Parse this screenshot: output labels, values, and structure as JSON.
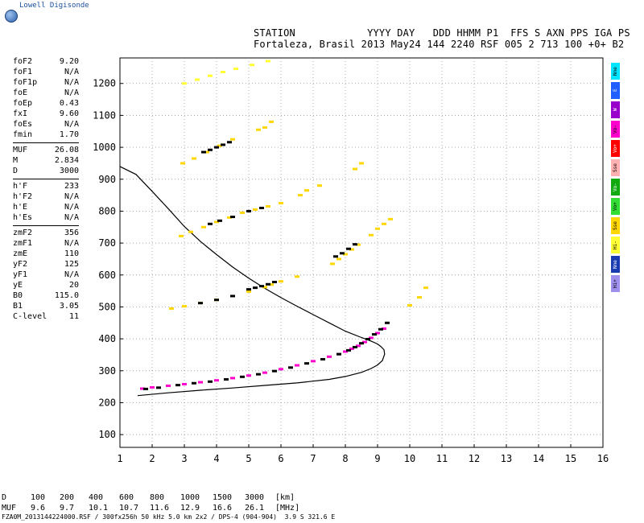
{
  "app": {
    "logo_text": "Lowell Digisonde"
  },
  "header": {
    "line1": "STATION            YYYY DAY   DDD HHMM P1  FFS S AXN PPS IGA PS",
    "line2": "Fortaleza, Brasil 2013 May24 144 2240 RSF 005 2 713 100 +0+ B2"
  },
  "params": {
    "group1": [
      {
        "key": "foF2",
        "val": "9.20"
      },
      {
        "key": "foF1",
        "val": "N/A"
      },
      {
        "key": "foF1p",
        "val": "N/A"
      },
      {
        "key": "foE",
        "val": "N/A"
      },
      {
        "key": "foEp",
        "val": "0.43"
      },
      {
        "key": "fxI",
        "val": "9.60"
      },
      {
        "key": "foEs",
        "val": "N/A"
      },
      {
        "key": "fmin",
        "val": "1.70"
      }
    ],
    "group2": [
      {
        "key": "MUF",
        "val": "26.08"
      },
      {
        "key": "M",
        "val": "2.834"
      },
      {
        "key": "D",
        "val": "3000"
      }
    ],
    "group3": [
      {
        "key": "h'F",
        "val": "233"
      },
      {
        "key": "h'F2",
        "val": "N/A"
      },
      {
        "key": "h'E",
        "val": "N/A"
      },
      {
        "key": "h'Es",
        "val": "N/A"
      }
    ],
    "group4": [
      {
        "key": "zmF2",
        "val": "356"
      },
      {
        "key": "zmF1",
        "val": "N/A"
      },
      {
        "key": "zmE",
        "val": "110"
      },
      {
        "key": "yF2",
        "val": "125"
      },
      {
        "key": "yF1",
        "val": "N/A"
      },
      {
        "key": "yE",
        "val": "20"
      },
      {
        "key": "B0",
        "val": "115.0"
      },
      {
        "key": "B1",
        "val": "3.05"
      },
      {
        "key": "C-level",
        "val": "11"
      }
    ]
  },
  "legend": [
    {
      "label": "Nne",
      "color": "#00e5ff"
    },
    {
      "label": "E",
      "color": "#1f5fff"
    },
    {
      "label": "W",
      "color": "#9900cc"
    },
    {
      "label": "Vo-",
      "color": "#ff00cc"
    },
    {
      "label": "Vo+",
      "color": "#ff0000"
    },
    {
      "label": "Sse",
      "color": "#ffb0b0"
    },
    {
      "label": "Vo-",
      "color": "#11aa11"
    },
    {
      "label": "Vo+",
      "color": "#33dd33"
    },
    {
      "label": "Sse",
      "color": "#ffd700"
    },
    {
      "label": "Hi-",
      "color": "#ffff33"
    },
    {
      "label": "Nne",
      "color": "#1a3cb0"
    },
    {
      "label": "Hi+",
      "color": "#a090ee"
    }
  ],
  "d_table": {
    "d_label": "D",
    "muf_label": "MUF",
    "d_values": [
      "100",
      "200",
      "400",
      "600",
      "800",
      "1000",
      "1500",
      "3000",
      "[km]"
    ],
    "muf_values": [
      "9.6",
      "9.7",
      "10.1",
      "10.7",
      "11.6",
      "12.9",
      "16.6",
      "26.1",
      "[MHz]"
    ]
  },
  "footer": "FZA0M_2013144224000.RSF / 300fx256h 50 kHz 5.0 km 2x2 / DPS-4 (904-904)  3.9 S 321.6 E",
  "chart_data": {
    "type": "scatter",
    "title": "",
    "xlabel": "",
    "ylabel": "",
    "xlim": [
      1,
      16
    ],
    "ylim": [
      60,
      1280
    ],
    "x_ticks": [
      1,
      2,
      3,
      4,
      5,
      6,
      7,
      8,
      9,
      10,
      11,
      12,
      13,
      14,
      15,
      16
    ],
    "y_ticks": [
      100,
      200,
      300,
      400,
      500,
      600,
      700,
      800,
      900,
      1000,
      1100,
      1200
    ],
    "grid": true,
    "series": [
      {
        "name": "",
        "color": "#000000",
        "style": "line",
        "x": [
          1.55,
          2.5,
          3.5,
          4.5,
          5.5,
          6.5,
          7.5,
          8.0,
          8.5,
          8.8,
          9.0,
          9.15,
          9.22,
          9.2,
          9.1,
          9.0,
          8.8,
          8.5,
          8.0,
          7.5,
          7.0,
          6.5,
          6.0,
          5.5,
          5.0,
          4.5,
          4.0,
          3.5,
          3.0,
          2.5,
          2.0,
          1.5,
          1.0
        ],
        "y": [
          222,
          231,
          239,
          246,
          254,
          262,
          273,
          282,
          295,
          307,
          318,
          332,
          352,
          366,
          376,
          384,
          393,
          404,
          424,
          450,
          476,
          502,
          529,
          558,
          590,
          625,
          664,
          705,
          752,
          808,
          862,
          915,
          940
        ]
      },
      {
        "name": "",
        "color": "#ff00cc",
        "style": "dots",
        "x": [
          1.7,
          2.0,
          2.5,
          3.0,
          3.5,
          4.0,
          4.5,
          5.0,
          5.5,
          6.0,
          6.5,
          7.0,
          7.5,
          7.8,
          8.0,
          8.2,
          8.4,
          8.6,
          8.8,
          9.0,
          9.2
        ],
        "y": [
          244,
          248,
          253,
          258,
          264,
          270,
          277,
          285,
          294,
          305,
          317,
          330,
          344,
          352,
          360,
          369,
          378,
          390,
          403,
          418,
          432
        ]
      },
      {
        "name": "",
        "color": "#000000",
        "style": "dots",
        "x": [
          1.8,
          2.2,
          2.8,
          3.3,
          3.8,
          4.3,
          4.8,
          5.3,
          5.8,
          6.3,
          6.8,
          7.3,
          7.8,
          8.1,
          8.3,
          8.5,
          8.7,
          8.9,
          9.1,
          9.3
        ],
        "y": [
          243,
          247,
          255,
          261,
          266,
          273,
          281,
          289,
          299,
          310,
          323,
          336,
          352,
          364,
          374,
          386,
          399,
          414,
          430,
          450
        ]
      },
      {
        "name": "",
        "color": "#ffd700",
        "style": "dots",
        "x": [
          2.6,
          3.0,
          3.5,
          4.0,
          4.5,
          5.0,
          5.5,
          5.7,
          6.0,
          6.5
        ],
        "y": [
          495,
          502,
          512,
          522,
          534,
          548,
          562,
          570,
          580,
          595
        ]
      },
      {
        "name": "",
        "color": "#000000",
        "style": "dots",
        "x": [
          3.5,
          4.0,
          4.5,
          5.0,
          5.2,
          5.4,
          5.6,
          5.8
        ],
        "y": [
          512,
          522,
          534,
          555,
          560,
          565,
          571,
          578
        ]
      },
      {
        "name": "",
        "color": "#ffd700",
        "style": "dots",
        "x": [
          2.9,
          3.2,
          3.6,
          4.0,
          4.4,
          4.8,
          5.2,
          5.6,
          6.0,
          6.6
        ],
        "y": [
          722,
          735,
          750,
          766,
          780,
          795,
          805,
          815,
          825,
          850
        ]
      },
      {
        "name": "",
        "color": "#000000",
        "style": "dots",
        "x": [
          3.8,
          4.1,
          4.5,
          5.0,
          5.4
        ],
        "y": [
          760,
          770,
          782,
          800,
          810
        ]
      },
      {
        "name": "",
        "color": "#ffd700",
        "style": "dots",
        "x": [
          2.95,
          3.3,
          3.7,
          4.1,
          4.5
        ],
        "y": [
          950,
          965,
          985,
          1005,
          1025
        ]
      },
      {
        "name": "",
        "color": "#000000",
        "style": "dots",
        "x": [
          3.6,
          3.8,
          4.0,
          4.2,
          4.4
        ],
        "y": [
          985,
          992,
          1000,
          1008,
          1016
        ]
      },
      {
        "name": "",
        "color": "#ffd700",
        "style": "dots",
        "x": [
          7.6,
          7.8,
          8.0,
          8.2,
          8.4,
          8.8,
          9.0,
          9.2,
          9.4
        ],
        "y": [
          635,
          650,
          665,
          680,
          695,
          725,
          745,
          760,
          775
        ]
      },
      {
        "name": "",
        "color": "#000000",
        "style": "dots",
        "x": [
          7.7,
          7.9,
          8.1,
          8.3
        ],
        "y": [
          658,
          668,
          682,
          696
        ]
      },
      {
        "name": "",
        "color": "#ffd700",
        "style": "dots",
        "x": [
          5.3,
          5.5,
          5.7,
          8.3,
          8.5,
          10.0,
          10.3,
          10.5,
          6.8,
          7.2
        ],
        "y": [
          1055,
          1062,
          1080,
          932,
          950,
          505,
          530,
          560,
          865,
          880
        ]
      },
      {
        "name": "",
        "color": "#ffff33",
        "style": "dots",
        "x": [
          3.0,
          3.4,
          3.8,
          4.2,
          4.6,
          5.1,
          5.6
        ],
        "y": [
          1200,
          1212,
          1224,
          1236,
          1246,
          1258,
          1270
        ]
      }
    ]
  }
}
